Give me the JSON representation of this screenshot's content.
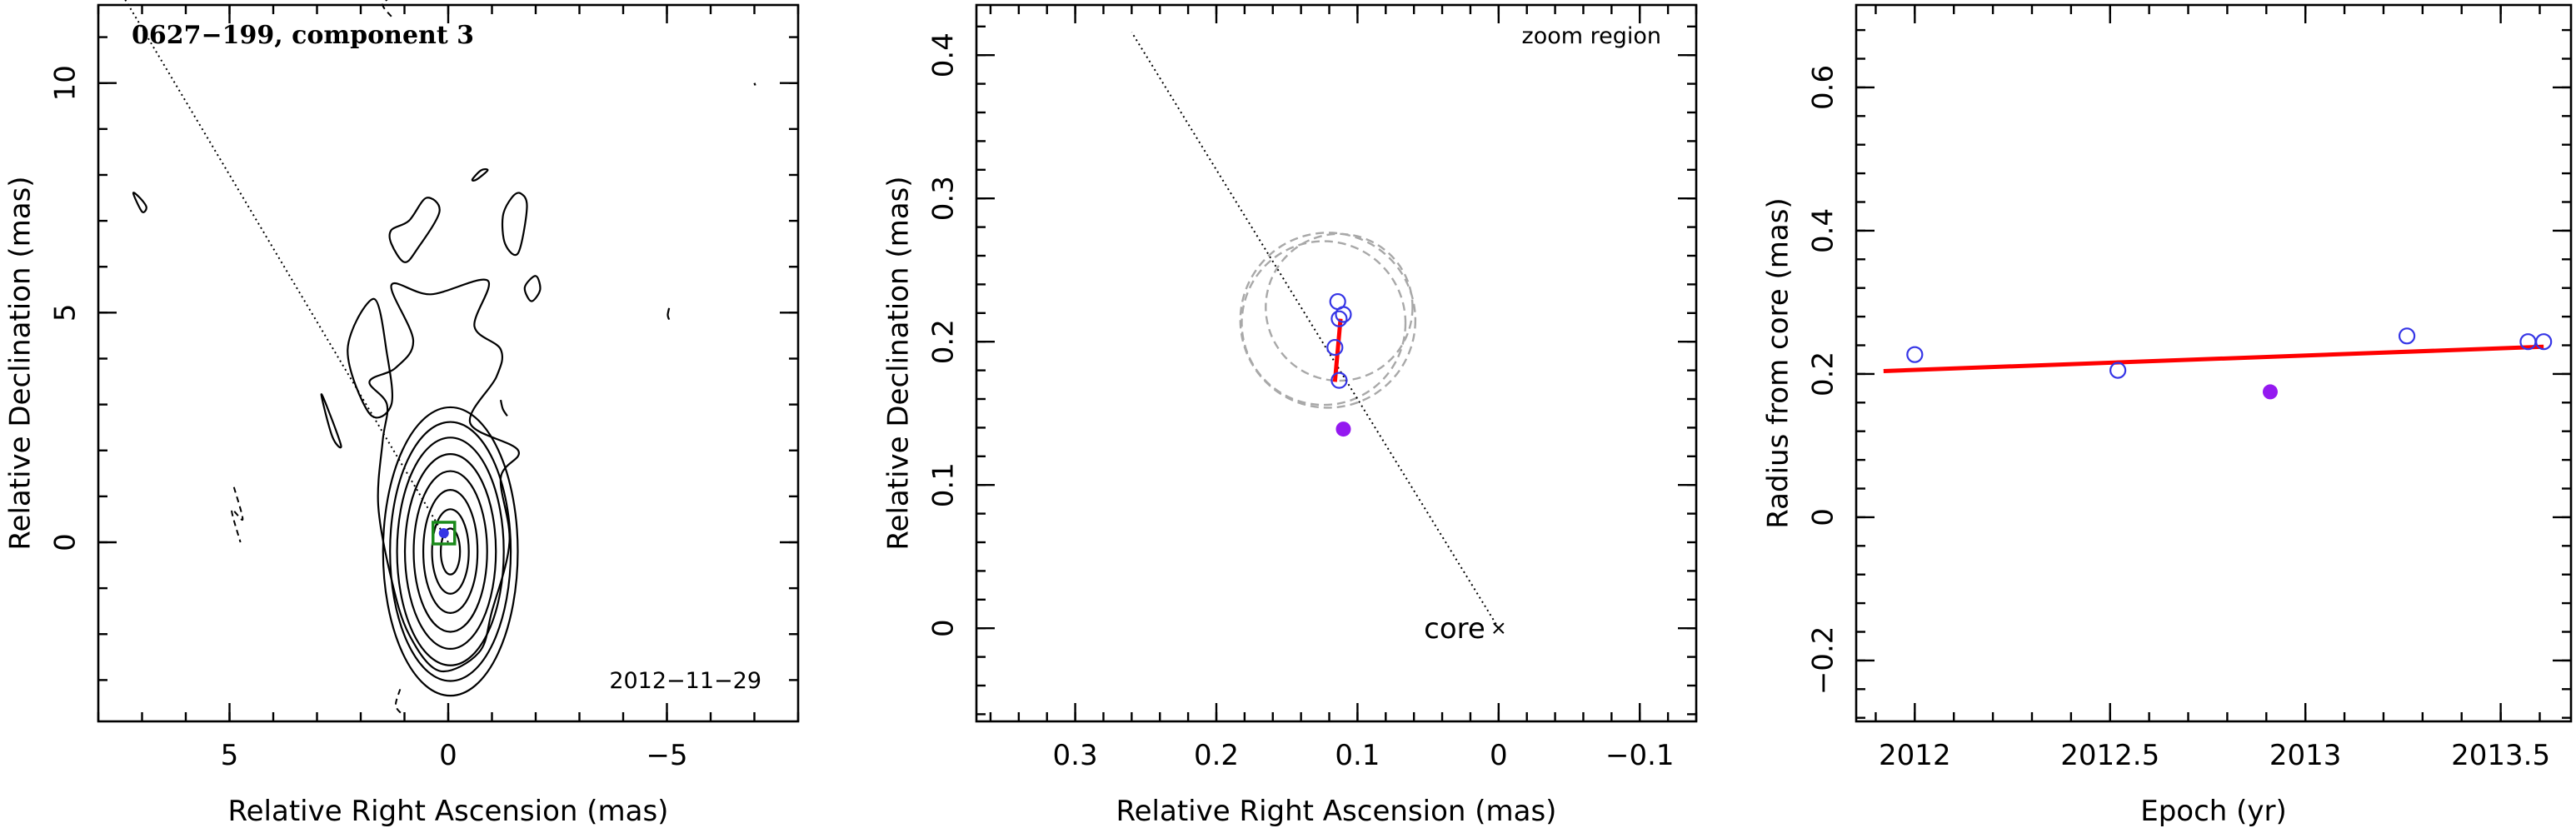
{
  "chart_data": [
    {
      "type": "contour-map",
      "title": "0627−199, component 3",
      "date_label": "2012−11−29",
      "xlabel": "Relative Right Ascension (mas)",
      "ylabel": "Relative Declination (mas)",
      "xlim": [
        8.0,
        -8.0
      ],
      "ylim": [
        -3.9,
        11.7
      ],
      "x_ticks": [
        5,
        0,
        -5
      ],
      "x_tick_labels": [
        "5",
        "0",
        "−5"
      ],
      "y_ticks": [
        0,
        5,
        10
      ],
      "y_tick_labels": [
        "0",
        "5",
        "10"
      ],
      "component_position": {
        "x": 0.1,
        "y": 0.2
      },
      "ridge_line": {
        "x": [
          0.0,
          8.0
        ],
        "y": [
          0.0,
          12.8
        ]
      },
      "core_contours": {
        "center": {
          "x": -0.05,
          "y": -0.2
        },
        "semi_axes": [
          [
            0.22,
            0.5
          ],
          [
            0.42,
            0.92
          ],
          [
            0.62,
            1.34
          ],
          [
            0.84,
            1.75
          ],
          [
            1.04,
            2.12
          ],
          [
            1.22,
            2.48
          ],
          [
            1.38,
            2.82
          ],
          [
            1.54,
            3.14
          ]
        ]
      },
      "outer_contours": [
        {
          "x": [
            0.2,
            0.9,
            1.3,
            1.6,
            1.5,
            1.4,
            1.8,
            1.2,
            0.8,
            1.3,
            0.4,
            -0.9,
            -0.6,
            -1.2,
            -1.1,
            -0.5,
            -1.6,
            -1.2,
            -1.4,
            -1.0,
            -0.7
          ],
          "y": [
            -2.8,
            -2.0,
            -0.8,
            0.8,
            2.2,
            3.0,
            3.5,
            3.8,
            4.4,
            5.6,
            5.4,
            5.7,
            4.7,
            4.2,
            3.6,
            2.6,
            2.0,
            1.4,
            0.0,
            -1.5,
            -2.4
          ]
        },
        {
          "x": [
            1.7,
            2.3,
            1.8,
            1.3,
            1.4
          ],
          "y": [
            5.3,
            4.2,
            2.8,
            3.0,
            4.1
          ]
        },
        {
          "x": [
            1.3,
            0.9,
            0.5,
            0.2,
            0.7,
            1.0,
            1.3
          ],
          "y": [
            6.8,
            7.0,
            7.5,
            7.2,
            6.4,
            6.1,
            6.5
          ]
        },
        {
          "x": [
            -1.45,
            -1.65,
            -1.8,
            -1.6,
            -1.3,
            -1.25
          ],
          "y": [
            7.5,
            7.6,
            7.3,
            6.3,
            6.5,
            7.1
          ]
        },
        {
          "x": [
            -0.55,
            -0.75,
            -0.9,
            -0.65
          ],
          "y": [
            7.9,
            8.1,
            8.1,
            7.9
          ]
        },
        {
          "x": [
            -2.0,
            -1.75,
            -1.9,
            -2.1
          ],
          "y": [
            5.8,
            5.55,
            5.25,
            5.5
          ]
        },
        {
          "x": [
            2.75,
            2.9,
            2.65,
            2.45
          ],
          "y": [
            2.9,
            3.2,
            2.3,
            2.1
          ]
        },
        {
          "x": [
            -1.2,
            -1.25,
            -1.35
          ],
          "y": [
            3.1,
            2.9,
            2.75
          ]
        },
        {
          "x": [
            7.05,
            7.2,
            7.0,
            6.9
          ],
          "y": [
            7.5,
            7.6,
            7.2,
            7.3
          ]
        },
        {
          "x": [
            -5.05,
            -5.02,
            -5.05
          ],
          "y": [
            5.1,
            4.95,
            4.85
          ]
        },
        {
          "x": [
            -7.0,
            -7.02
          ],
          "y": [
            10.0,
            9.95
          ]
        }
      ],
      "negative_contours": [
        {
          "x": [
            4.9,
            4.7,
            4.95,
            4.75
          ],
          "y": [
            1.2,
            0.5,
            0.7,
            0.0
          ]
        },
        {
          "x": [
            1.1,
            1.2,
            1.05
          ],
          "y": [
            -3.2,
            -3.55,
            -3.75
          ]
        },
        {
          "x": [
            1.3,
            1.5,
            1.35
          ],
          "y": [
            11.45,
            11.7,
            11.85
          ]
        }
      ]
    },
    {
      "type": "scatter",
      "annotation": "zoom region",
      "core_label": "core",
      "xlabel": "Relative Right Ascension (mas)",
      "ylabel": "Relative Declination (mas)",
      "xlim": [
        0.37,
        -0.14
      ],
      "ylim": [
        -0.065,
        0.435
      ],
      "x_ticks": [
        0.3,
        0.2,
        0.1,
        0,
        -0.1
      ],
      "x_tick_labels": [
        "0.3",
        "0.2",
        "0.1",
        "0",
        "−0.1"
      ],
      "y_ticks": [
        0,
        0.1,
        0.2,
        0.3,
        0.4
      ],
      "y_tick_labels": [
        "0",
        "0.1",
        "0.2",
        "0.3",
        "0.4"
      ],
      "core": {
        "x": 0.0,
        "y": 0.0
      },
      "ridge_line": {
        "x": [
          0.0,
          0.26
        ],
        "y": [
          0.0,
          0.416
        ]
      },
      "points_open": {
        "x": [
          0.113,
          0.116,
          0.113,
          0.11,
          0.114
        ],
        "y": [
          0.173,
          0.196,
          0.216,
          0.219,
          0.228
        ]
      },
      "point_filled": {
        "x": 0.11,
        "y": 0.139
      },
      "fit_segment": {
        "x": [
          0.116,
          0.112
        ],
        "y": [
          0.172,
          0.216
        ]
      },
      "error_circles": [
        {
          "x": 0.113,
          "y": 0.224,
          "r": 0.052
        },
        {
          "x": 0.121,
          "y": 0.215,
          "r": 0.062
        },
        {
          "x": 0.124,
          "y": 0.213,
          "r": 0.058
        }
      ],
      "colors": {
        "open": "#3535e6",
        "filled": "#9419f0",
        "fit": "#ff0000",
        "circles": "#a8a8a8"
      }
    },
    {
      "type": "scatter",
      "xlabel": "Epoch (yr)",
      "ylabel": "Radius from core (mas)",
      "xlim": [
        2011.85,
        2013.68
      ],
      "ylim": [
        -0.285,
        0.715
      ],
      "x_ticks": [
        2012,
        2012.5,
        2013,
        2013.5
      ],
      "x_tick_labels": [
        "2012",
        "2012.5",
        "2013",
        "2013.5"
      ],
      "y_ticks": [
        -0.2,
        0,
        0.2,
        0.4,
        0.6
      ],
      "y_tick_labels": [
        "−0.2",
        "0",
        "0.2",
        "0.4",
        "0.6"
      ],
      "points_open": {
        "x": [
          2012.0,
          2012.52,
          2013.26,
          2013.57,
          2013.61
        ],
        "y": [
          0.227,
          0.205,
          0.253,
          0.245,
          0.245
        ]
      },
      "point_filled": {
        "x": 2012.91,
        "y": 0.175
      },
      "fit_line": {
        "x": [
          2011.92,
          2013.61
        ],
        "y": [
          0.204,
          0.238
        ]
      },
      "colors": {
        "open": "#3535e6",
        "filled": "#9419f0",
        "fit": "#ff0000"
      }
    }
  ]
}
